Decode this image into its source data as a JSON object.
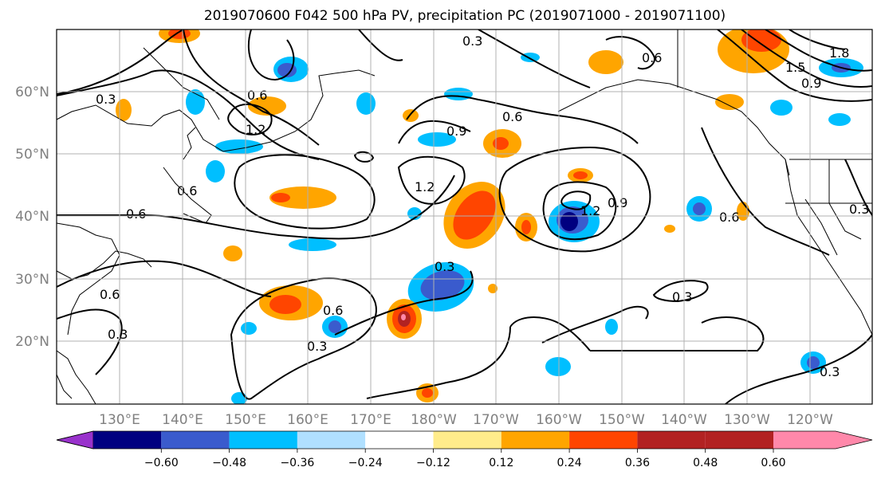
{
  "title": "2019070600 F042 500 hPa PV, precipitation PC (2019071000 - 2019071100)",
  "map": {
    "lon_labels": [
      "130°E",
      "140°E",
      "150°E",
      "160°E",
      "170°E",
      "180°W",
      "170°W",
      "160°W",
      "150°W",
      "140°W",
      "130°W",
      "120°W"
    ],
    "lat_labels": [
      "60°N",
      "50°N",
      "40°N",
      "30°N",
      "20°N"
    ],
    "contour_labels": [
      "0.3",
      "0.6",
      "1.2",
      "0.6",
      "0.6",
      "0.9",
      "1.2",
      "1.2",
      "0.9",
      "0.6",
      "0.3",
      "0.6",
      "0.3",
      "0.3",
      "0.6",
      "0.3",
      "0.3",
      "0.6",
      "0.9",
      "1.5",
      "1.8",
      "0.3",
      "0.6",
      "0.3"
    ]
  },
  "colorbar": {
    "colors": [
      "#9932cc",
      "#000080",
      "#3a5bcd",
      "#00bfff",
      "#b0e0ff",
      "#ffffff",
      "#ffec8b",
      "#ffa500",
      "#ff4500",
      "#b22222",
      "#ff88aa"
    ],
    "labels": [
      "−0.60",
      "−0.48",
      "−0.36",
      "−0.24",
      "−0.12",
      "0.12",
      "0.24",
      "0.36",
      "0.48",
      "0.60"
    ]
  }
}
